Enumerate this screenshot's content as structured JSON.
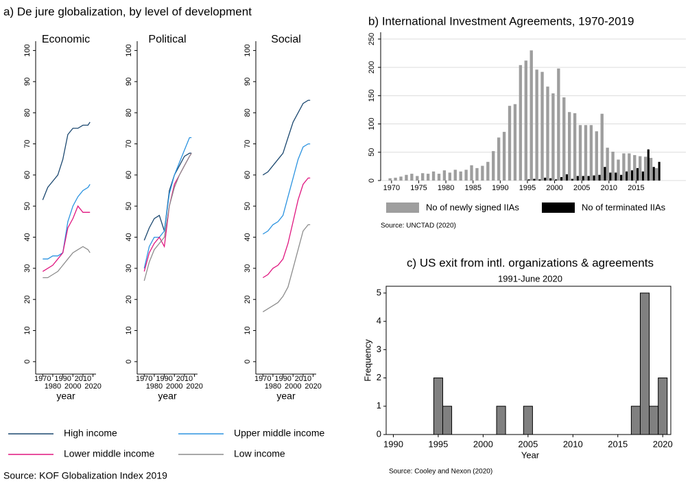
{
  "chart_data": [
    {
      "type": "line",
      "title": "a) De jure globalization, by level of development",
      "x": [
        1970,
        1975,
        1980,
        1985,
        1990,
        1995,
        2000,
        2005,
        2010,
        2015,
        2017
      ],
      "xlim": [
        1963,
        2023
      ],
      "xticks": [
        1970,
        1980,
        1990,
        2000,
        2010,
        2020
      ],
      "ylim": [
        -4,
        103
      ],
      "yticks": [
        0,
        10,
        20,
        30,
        40,
        50,
        60,
        70,
        80,
        90,
        100
      ],
      "xlabel": "year",
      "series": [
        {
          "name": "High income",
          "color": "#1a476f"
        },
        {
          "name": "Upper middle income",
          "color": "#2b93e0"
        },
        {
          "name": "Lower middle income",
          "color": "#e0157f"
        },
        {
          "name": "Low income",
          "color": "#8c8c8c"
        }
      ],
      "panels": [
        {
          "subtitle": "Economic",
          "values": [
            [
              52,
              56,
              58,
              60,
              65,
              73,
              75,
              75,
              76,
              76,
              77
            ],
            [
              33,
              33,
              34,
              34,
              35,
              45,
              50,
              53,
              55,
              56,
              57
            ],
            [
              29,
              30,
              31,
              33,
              35,
              43,
              46,
              50,
              48,
              48,
              48
            ],
            [
              27,
              27,
              28,
              29,
              31,
              33,
              35,
              36,
              37,
              36,
              35
            ]
          ]
        },
        {
          "subtitle": "Political",
          "values": [
            [
              39,
              43,
              46,
              47,
              42,
              55,
              60,
              63,
              66,
              67,
              67
            ],
            [
              30,
              37,
              40,
              40,
              42,
              54,
              60,
              64,
              68,
              72,
              72
            ],
            [
              29,
              35,
              38,
              40,
              37,
              50,
              57,
              60,
              63,
              66,
              67
            ],
            [
              26,
              32,
              36,
              38,
              40,
              50,
              56,
              60,
              63,
              66,
              67
            ]
          ]
        },
        {
          "subtitle": "Social",
          "values": [
            [
              60,
              61,
              63,
              65,
              67,
              72,
              77,
              80,
              83,
              84,
              84
            ],
            [
              41,
              42,
              44,
              45,
              47,
              53,
              59,
              65,
              69,
              70,
              70
            ],
            [
              27,
              28,
              30,
              31,
              33,
              38,
              45,
              52,
              57,
              59,
              59
            ],
            [
              16,
              17,
              18,
              19,
              21,
              24,
              30,
              36,
              42,
              44,
              44
            ]
          ]
        }
      ],
      "source": "Source: KOF Globalization Index 2019"
    },
    {
      "type": "bar",
      "title": "b) International Investment Agreements, 1970-2019",
      "x": [
        1970,
        1971,
        1972,
        1973,
        1974,
        1975,
        1976,
        1977,
        1978,
        1979,
        1980,
        1981,
        1982,
        1983,
        1984,
        1985,
        1986,
        1987,
        1988,
        1989,
        1990,
        1991,
        1992,
        1993,
        1994,
        1995,
        1996,
        1997,
        1998,
        1999,
        2000,
        2001,
        2002,
        2003,
        2004,
        2005,
        2006,
        2007,
        2008,
        2009,
        2010,
        2011,
        2012,
        2013,
        2014,
        2015,
        2016,
        2017,
        2018,
        2019
      ],
      "xlim": [
        1968,
        2021
      ],
      "xticks": [
        1970,
        1975,
        1980,
        1985,
        1990,
        1995,
        2000,
        2005,
        2010,
        2015
      ],
      "ylim": [
        0,
        262
      ],
      "yticks": [
        0,
        50,
        100,
        150,
        200,
        250
      ],
      "grid": true,
      "series": [
        {
          "name": "No of newly signed IIAs",
          "color": "#9e9e9e",
          "values": [
            4,
            5,
            7,
            10,
            12,
            8,
            13,
            12,
            16,
            12,
            18,
            14,
            19,
            16,
            19,
            27,
            22,
            26,
            33,
            52,
            76,
            86,
            132,
            135,
            204,
            212,
            230,
            196,
            192,
            166,
            154,
            198,
            147,
            121,
            119,
            98,
            98,
            98,
            87,
            118,
            58,
            51,
            37,
            48,
            48,
            45,
            43,
            42,
            40,
            22
          ]
        },
        {
          "name": "No of terminated IIAs",
          "color": "#000000",
          "values": [
            0,
            0,
            0,
            0,
            0,
            0,
            0,
            0,
            0,
            0,
            0,
            0,
            0,
            0,
            0,
            0,
            0,
            0,
            0,
            0,
            0,
            0,
            0,
            0,
            0,
            2,
            3,
            2,
            5,
            4,
            2,
            6,
            11,
            3,
            8,
            8,
            8,
            9,
            10,
            24,
            14,
            14,
            10,
            16,
            18,
            22,
            16,
            55,
            24,
            33
          ]
        }
      ],
      "source": "Source: UNCTAD (2020)"
    },
    {
      "type": "histogram",
      "title": "c) US exit from intl. organizations & agreements",
      "subtitle": "1991-June 2020",
      "bins": [
        1994.5,
        1995.5,
        1996.5,
        1997.5,
        1998.5,
        1999.5,
        2000.5,
        2001.5,
        2002.5,
        2003.5,
        2004.5,
        2005.5,
        2006.5,
        2007.5,
        2008.5,
        2009.5,
        2010.5,
        2011.5,
        2012.5,
        2013.5,
        2014.5,
        2015.5,
        2016.5,
        2017.5,
        2018.5,
        2019.5,
        2020.5
      ],
      "values": [
        2,
        1,
        0,
        0,
        0,
        0,
        0,
        1,
        0,
        0,
        1,
        0,
        0,
        0,
        0,
        0,
        0,
        0,
        0,
        0,
        0,
        0,
        1,
        5,
        1,
        2
      ],
      "color": "#808080",
      "xlim": [
        1989.2,
        2020.9
      ],
      "xticks": [
        1990,
        1995,
        2000,
        2005,
        2010,
        2015,
        2020
      ],
      "ylim": [
        0,
        5.24
      ],
      "yticks": [
        0,
        1,
        2,
        3,
        4,
        5
      ],
      "xlabel": "Year",
      "ylabel": "Frequency",
      "source": "Source: Cooley and Nexon (2020)"
    }
  ]
}
